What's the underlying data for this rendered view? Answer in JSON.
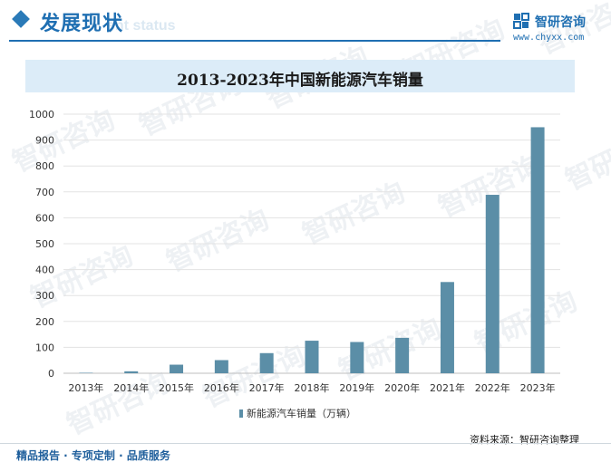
{
  "header": {
    "section_title": "发展现状",
    "section_subtitle": "ent status",
    "brand_name": "智研咨询",
    "brand_url": "www.chyxx.com"
  },
  "chart_data": {
    "type": "bar",
    "title": "2013-2023年中国新能源汽车销量",
    "categories": [
      "2013年",
      "2014年",
      "2015年",
      "2016年",
      "2017年",
      "2018年",
      "2019年",
      "2020年",
      "2021年",
      "2022年",
      "2023年"
    ],
    "series": [
      {
        "name": "新能源汽车销量（万辆）",
        "values": [
          1.8,
          7.5,
          33.1,
          50.7,
          77.7,
          125.6,
          120.6,
          136.7,
          352.1,
          688.7,
          949.5
        ]
      }
    ],
    "yticks": [
      "0",
      "100",
      "200",
      "300",
      "400",
      "500",
      "600",
      "700",
      "800",
      "900",
      "1000"
    ],
    "ylim": [
      0,
      1000
    ],
    "grid": true,
    "legend_position": "bottom",
    "bar_color": "#5b8ea7"
  },
  "source": "资料来源：智研咨询整理",
  "footer": "精品报告 · 专项定制 · 品质服务",
  "watermark_text": "智研咨询"
}
